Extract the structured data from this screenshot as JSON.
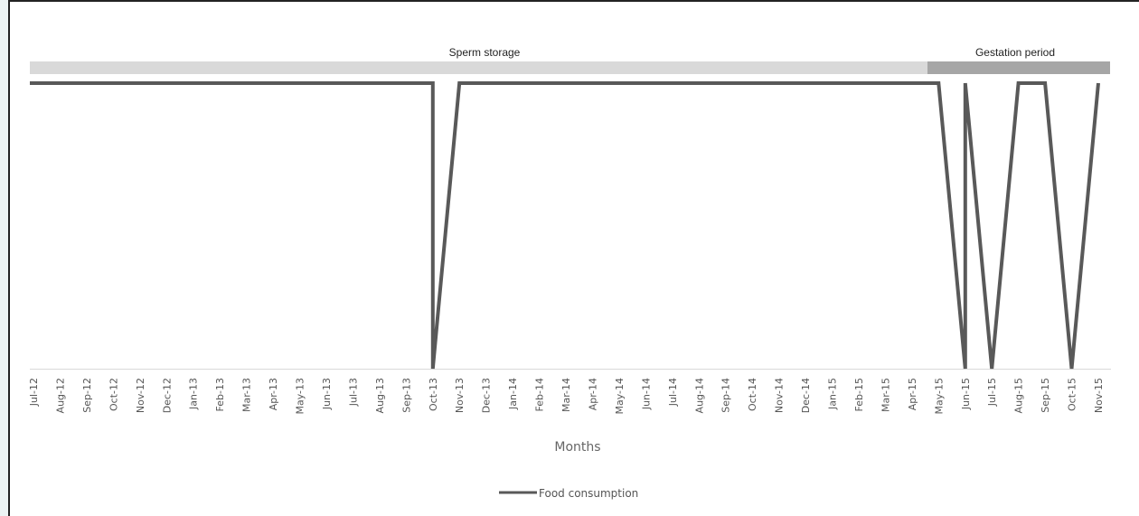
{
  "chart_data": {
    "type": "line",
    "xlabel": "Months",
    "categories": [
      "Jul-12",
      "Aug-12",
      "Sep-12",
      "Oct-12",
      "Nov-12",
      "Dec-12",
      "Jan-13",
      "Feb-13",
      "Mar-13",
      "Apr-13",
      "May-13",
      "Jun-13",
      "Jul-13",
      "Aug-13",
      "Sep-13",
      "Oct-13",
      "Nov-13",
      "Dec-13",
      "Jan-14",
      "Feb-14",
      "Mar-14",
      "Apr-14",
      "May-14",
      "Jun-14",
      "Jul-14",
      "Aug-14",
      "Sep-14",
      "Oct-14",
      "Nov-14",
      "Dec-14",
      "Jan-15",
      "Feb-15",
      "Mar-15",
      "Apr-15",
      "May-15",
      "Jun-15",
      "Jul-15",
      "Aug-15",
      "Sep-15",
      "Oct-15",
      "Nov-15"
    ],
    "series": [
      {
        "name": "Food consumption",
        "color": "#595959",
        "points": [
          {
            "x": "Jul-12",
            "y": 1
          },
          {
            "x": "Oct-13",
            "y": 1
          },
          {
            "x": "Oct-13",
            "y": 0
          },
          {
            "x": "Nov-13",
            "y": 1
          },
          {
            "x": "May-15",
            "y": 1
          },
          {
            "x": "Jun-15",
            "y": 0
          },
          {
            "x": "Jun-15",
            "y": 1
          },
          {
            "x": "Jul-15",
            "y": 0
          },
          {
            "x": "Aug-15",
            "y": 1
          },
          {
            "x": "Sep-15",
            "y": 1
          },
          {
            "x": "Oct-15",
            "y": 0
          },
          {
            "x": "Nov-15",
            "y": 1
          }
        ]
      }
    ],
    "periods": [
      {
        "label": "Sperm storage",
        "color": "#d9d9d9"
      },
      {
        "label": "Gestation period",
        "color": "#a6a6a6"
      }
    ],
    "legend": {
      "position": "bottom"
    },
    "grid": false
  }
}
